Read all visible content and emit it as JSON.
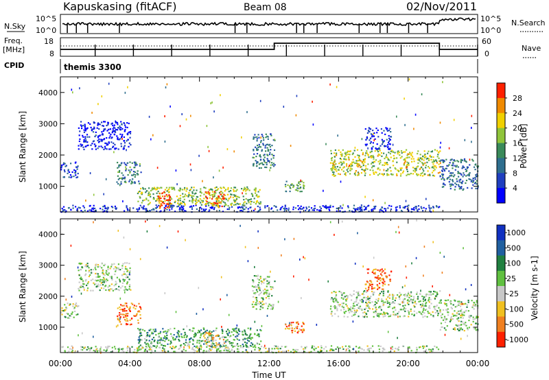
{
  "header": {
    "station": "Kapuskasing (fitACF)",
    "beam": "Beam 08",
    "date": "02/Nov/2011"
  },
  "noise_panel": {
    "left_label": "N.Sky",
    "right_label": "N.Search",
    "tick_top": "10^5",
    "tick_bottom": "10^0"
  },
  "freq_panel": {
    "left_label_1": "Freq.",
    "left_label_2": "[MHz]",
    "left_ticks": [
      "18",
      "8"
    ],
    "right_ticks": [
      "60",
      "0"
    ],
    "right_label": "Nave"
  },
  "cpid": {
    "label": "CPID",
    "value": "themis 3300"
  },
  "colors": {
    "power": [
      "#0000ff",
      "#1f3fbf",
      "#2e6e8e",
      "#3a8a5a",
      "#8fc43a",
      "#f0d000",
      "#f08a00",
      "#ff2000"
    ],
    "velocity": [
      "#1030c0",
      "#2060a0",
      "#208040",
      "#60c040",
      "#c8c8c8",
      "#f0c020",
      "#f08020",
      "#ff2000"
    ]
  },
  "chart_data": [
    {
      "type": "heatmap",
      "name": "power",
      "ylabel": "Slant Range [km]",
      "xlabel": "",
      "x_ticks": [
        "00:00",
        "04:00",
        "08:00",
        "12:00",
        "16:00",
        "20:00",
        "00:00"
      ],
      "y_ticks": [
        1000,
        2000,
        3000,
        4000
      ],
      "ylim": [
        180,
        4500
      ],
      "xlim_hours": [
        0,
        24
      ],
      "colorbar": {
        "label": "Power [dB]",
        "ticks": [
          "4",
          "8",
          "12",
          "16",
          "20",
          "24",
          "28"
        ]
      },
      "regions": [
        {
          "t0": 0.0,
          "t1": 21.8,
          "r0": 200,
          "r1": 420,
          "level": 0.15
        },
        {
          "t0": 0.0,
          "t1": 1.0,
          "r0": 1300,
          "r1": 1800,
          "level": 0.2
        },
        {
          "t0": 1.0,
          "t1": 4.0,
          "r0": 2200,
          "r1": 3100,
          "level": 0.1
        },
        {
          "t0": 3.2,
          "t1": 4.6,
          "r0": 1100,
          "r1": 1800,
          "level": 0.35
        },
        {
          "t0": 4.4,
          "t1": 11.5,
          "r0": 400,
          "r1": 1000,
          "level": 0.55
        },
        {
          "t0": 5.6,
          "t1": 6.3,
          "r0": 300,
          "r1": 900,
          "level": 0.9
        },
        {
          "t0": 8.2,
          "t1": 9.4,
          "r0": 350,
          "r1": 850,
          "level": 0.85
        },
        {
          "t0": 11.0,
          "t1": 12.3,
          "r0": 1600,
          "r1": 2700,
          "level": 0.35
        },
        {
          "t0": 12.9,
          "t1": 14.0,
          "r0": 850,
          "r1": 1200,
          "level": 0.45
        },
        {
          "t0": 15.5,
          "t1": 21.8,
          "r0": 1350,
          "r1": 2200,
          "level": 0.6
        },
        {
          "t0": 21.8,
          "t1": 24.0,
          "r0": 900,
          "r1": 1900,
          "level": 0.3
        },
        {
          "t0": 17.5,
          "t1": 19.0,
          "r0": 2200,
          "r1": 2900,
          "level": 0.15
        }
      ]
    },
    {
      "type": "heatmap",
      "name": "velocity",
      "ylabel": "Slant Range [km]",
      "xlabel": "Time UT",
      "x_ticks": [
        "00:00",
        "04:00",
        "08:00",
        "12:00",
        "16:00",
        "20:00",
        "00:00"
      ],
      "y_ticks": [
        1000,
        2000,
        3000,
        4000
      ],
      "ylim": [
        180,
        4500
      ],
      "xlim_hours": [
        0,
        24
      ],
      "colorbar": {
        "label": "Velocity [m s-1]",
        "ticks": [
          "1000",
          "500",
          "100",
          "25",
          "-25",
          "-100",
          "-500",
          "-1000"
        ]
      },
      "regions": [
        {
          "t0": 0.0,
          "t1": 21.8,
          "r0": 200,
          "r1": 420,
          "level": 0.5
        },
        {
          "t0": 0.0,
          "t1": 1.0,
          "r0": 1300,
          "r1": 1800,
          "level": 0.5
        },
        {
          "t0": 1.0,
          "t1": 4.0,
          "r0": 2200,
          "r1": 3100,
          "level": 0.5
        },
        {
          "t0": 3.2,
          "t1": 4.6,
          "r0": 1100,
          "r1": 1800,
          "level": 0.85
        },
        {
          "t0": 4.4,
          "t1": 11.5,
          "r0": 400,
          "r1": 1000,
          "level": 0.35
        },
        {
          "t0": 8.2,
          "t1": 9.4,
          "r0": 350,
          "r1": 850,
          "level": 0.7
        },
        {
          "t0": 11.0,
          "t1": 12.3,
          "r0": 1600,
          "r1": 2700,
          "level": 0.5
        },
        {
          "t0": 12.9,
          "t1": 14.0,
          "r0": 850,
          "r1": 1200,
          "level": 0.75
        },
        {
          "t0": 15.5,
          "t1": 21.8,
          "r0": 1350,
          "r1": 2200,
          "level": 0.5
        },
        {
          "t0": 21.8,
          "t1": 24.0,
          "r0": 900,
          "r1": 1900,
          "level": 0.5
        },
        {
          "t0": 17.5,
          "t1": 19.0,
          "r0": 2200,
          "r1": 2900,
          "level": 0.85
        }
      ]
    }
  ]
}
